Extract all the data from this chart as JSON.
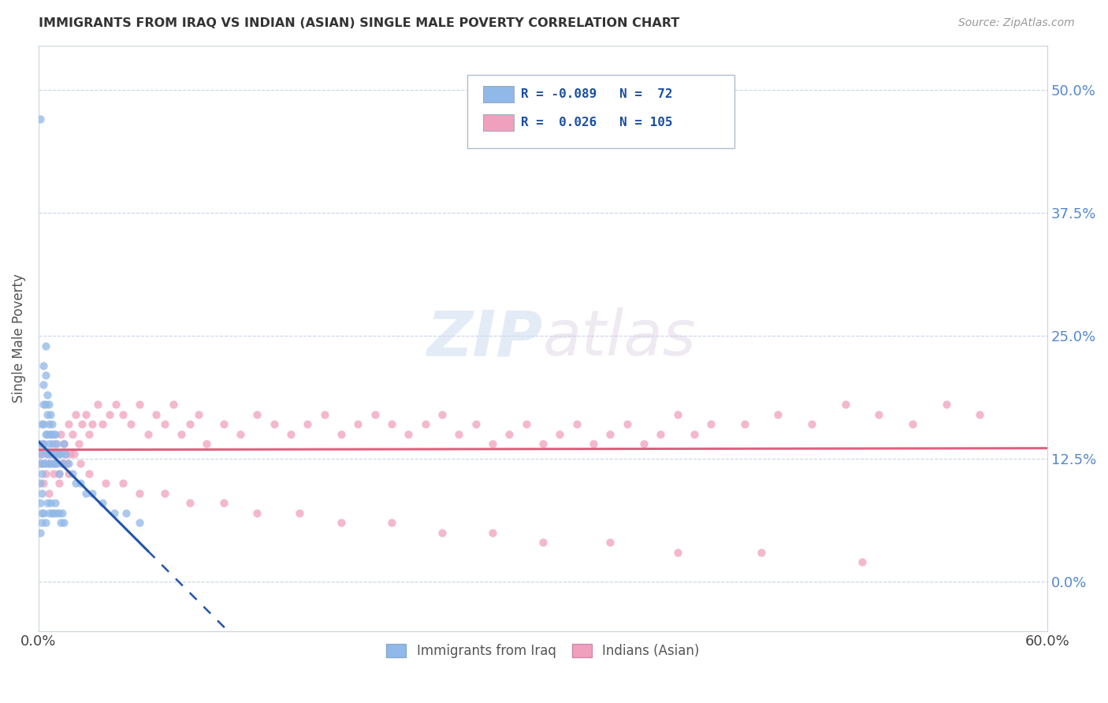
{
  "title": "IMMIGRANTS FROM IRAQ VS INDIAN (ASIAN) SINGLE MALE POVERTY CORRELATION CHART",
  "source": "Source: ZipAtlas.com",
  "ylabel": "Single Male Poverty",
  "ytick_values": [
    0.0,
    0.125,
    0.25,
    0.375,
    0.5
  ],
  "xlim": [
    0.0,
    0.6
  ],
  "ylim": [
    -0.05,
    0.545
  ],
  "legend_labels_bottom": [
    "Immigrants from Iraq",
    "Indians (Asian)"
  ],
  "watermark_zip": "ZIP",
  "watermark_atlas": "atlas",
  "iraq_color": "#90b8e8",
  "india_color": "#f0a0bc",
  "iraq_line_color": "#2255aa",
  "india_line_color": "#e06080",
  "background_color": "#ffffff",
  "grid_color": "#c8d4e8",
  "iraq_R": -0.089,
  "india_R": 0.026,
  "iraq_N": 72,
  "india_N": 105,
  "iraq_scatter_x": [
    0.001,
    0.001,
    0.001,
    0.001,
    0.001,
    0.002,
    0.002,
    0.002,
    0.002,
    0.002,
    0.003,
    0.003,
    0.003,
    0.003,
    0.003,
    0.003,
    0.004,
    0.004,
    0.004,
    0.004,
    0.004,
    0.005,
    0.005,
    0.005,
    0.005,
    0.006,
    0.006,
    0.006,
    0.006,
    0.007,
    0.007,
    0.007,
    0.008,
    0.008,
    0.008,
    0.009,
    0.009,
    0.01,
    0.01,
    0.011,
    0.011,
    0.012,
    0.012,
    0.013,
    0.014,
    0.015,
    0.016,
    0.018,
    0.02,
    0.022,
    0.025,
    0.028,
    0.032,
    0.038,
    0.045,
    0.052,
    0.06,
    0.001,
    0.002,
    0.003,
    0.004,
    0.005,
    0.006,
    0.007,
    0.008,
    0.009,
    0.01,
    0.011,
    0.012,
    0.013,
    0.014,
    0.015
  ],
  "iraq_scatter_y": [
    0.47,
    0.14,
    0.12,
    0.1,
    0.08,
    0.16,
    0.13,
    0.11,
    0.09,
    0.07,
    0.22,
    0.2,
    0.18,
    0.16,
    0.14,
    0.12,
    0.24,
    0.21,
    0.18,
    0.15,
    0.12,
    0.19,
    0.17,
    0.15,
    0.13,
    0.18,
    0.16,
    0.14,
    0.12,
    0.17,
    0.15,
    0.13,
    0.16,
    0.14,
    0.12,
    0.15,
    0.13,
    0.15,
    0.12,
    0.14,
    0.12,
    0.13,
    0.11,
    0.13,
    0.12,
    0.14,
    0.13,
    0.12,
    0.11,
    0.1,
    0.1,
    0.09,
    0.09,
    0.08,
    0.07,
    0.07,
    0.06,
    0.05,
    0.06,
    0.07,
    0.06,
    0.08,
    0.07,
    0.08,
    0.07,
    0.07,
    0.08,
    0.07,
    0.07,
    0.06,
    0.07,
    0.06
  ],
  "india_scatter_x": [
    0.001,
    0.002,
    0.003,
    0.004,
    0.005,
    0.006,
    0.007,
    0.008,
    0.009,
    0.01,
    0.011,
    0.012,
    0.013,
    0.014,
    0.015,
    0.016,
    0.017,
    0.018,
    0.019,
    0.02,
    0.022,
    0.024,
    0.026,
    0.028,
    0.03,
    0.032,
    0.035,
    0.038,
    0.042,
    0.046,
    0.05,
    0.055,
    0.06,
    0.065,
    0.07,
    0.075,
    0.08,
    0.085,
    0.09,
    0.095,
    0.1,
    0.11,
    0.12,
    0.13,
    0.14,
    0.15,
    0.16,
    0.17,
    0.18,
    0.19,
    0.2,
    0.21,
    0.22,
    0.23,
    0.24,
    0.25,
    0.26,
    0.27,
    0.28,
    0.29,
    0.3,
    0.31,
    0.32,
    0.33,
    0.34,
    0.35,
    0.36,
    0.37,
    0.38,
    0.39,
    0.4,
    0.42,
    0.44,
    0.46,
    0.48,
    0.5,
    0.52,
    0.54,
    0.56,
    0.003,
    0.006,
    0.009,
    0.012,
    0.015,
    0.018,
    0.021,
    0.025,
    0.03,
    0.04,
    0.05,
    0.06,
    0.075,
    0.09,
    0.11,
    0.13,
    0.155,
    0.18,
    0.21,
    0.24,
    0.27,
    0.3,
    0.34,
    0.38,
    0.43,
    0.49
  ],
  "india_scatter_y": [
    0.13,
    0.12,
    0.14,
    0.11,
    0.13,
    0.12,
    0.15,
    0.13,
    0.12,
    0.14,
    0.13,
    0.11,
    0.15,
    0.12,
    0.14,
    0.13,
    0.12,
    0.16,
    0.13,
    0.15,
    0.17,
    0.14,
    0.16,
    0.17,
    0.15,
    0.16,
    0.18,
    0.16,
    0.17,
    0.18,
    0.17,
    0.16,
    0.18,
    0.15,
    0.17,
    0.16,
    0.18,
    0.15,
    0.16,
    0.17,
    0.14,
    0.16,
    0.15,
    0.17,
    0.16,
    0.15,
    0.16,
    0.17,
    0.15,
    0.16,
    0.17,
    0.16,
    0.15,
    0.16,
    0.17,
    0.15,
    0.16,
    0.14,
    0.15,
    0.16,
    0.14,
    0.15,
    0.16,
    0.14,
    0.15,
    0.16,
    0.14,
    0.15,
    0.17,
    0.15,
    0.16,
    0.16,
    0.17,
    0.16,
    0.18,
    0.17,
    0.16,
    0.18,
    0.17,
    0.1,
    0.09,
    0.11,
    0.1,
    0.12,
    0.11,
    0.13,
    0.12,
    0.11,
    0.1,
    0.1,
    0.09,
    0.09,
    0.08,
    0.08,
    0.07,
    0.07,
    0.06,
    0.06,
    0.05,
    0.05,
    0.04,
    0.04,
    0.03,
    0.03,
    0.02
  ]
}
